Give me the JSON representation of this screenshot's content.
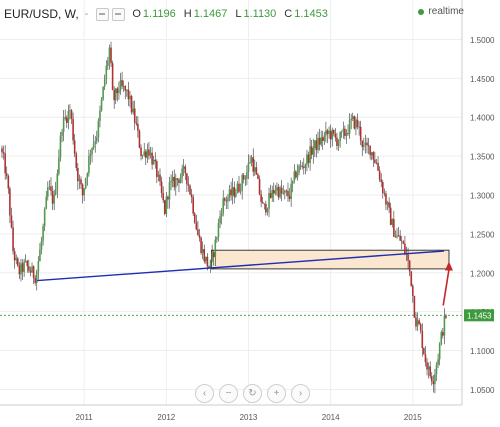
{
  "header": {
    "symbol": "EUR/USD, W,",
    "dash": "-",
    "open_label": "O",
    "open": "1.1196",
    "high_label": "H",
    "high": "1.1467",
    "low_label": "L",
    "low": "1.1130",
    "close_label": "C",
    "close": "1.1453",
    "realtime": "realtime"
  },
  "colors": {
    "up": "#4e9a4e",
    "down": "#b03030",
    "trendline": "#1f2fb5",
    "arrow": "#c0282c",
    "zone_fill": "#fbe6cf",
    "last_price": "#3d9a3d"
  },
  "nav_buttons": [
    "‹",
    "−",
    "↻",
    "+",
    "›"
  ],
  "chart_data": {
    "type": "candlestick",
    "symbol": "EUR/USD",
    "interval": "W",
    "x_ticks": [
      "2011",
      "2012",
      "2013",
      "2014",
      "2015"
    ],
    "y_ticks": [
      "1.5000",
      "1.4500",
      "1.4000",
      "1.3500",
      "1.3000",
      "1.2500",
      "1.2000",
      "1.1500",
      "1.1000",
      "1.0500"
    ],
    "ylim": [
      1.03,
      1.525
    ],
    "xlim": [
      2010.0,
      2015.55
    ],
    "last_price": "1.1453",
    "last_price_value": 1.1453,
    "key_points": [
      [
        2010.0,
        1.36
      ],
      [
        2010.05,
        1.34
      ],
      [
        2010.1,
        1.3
      ],
      [
        2010.15,
        1.23
      ],
      [
        2010.22,
        1.2
      ],
      [
        2010.3,
        1.21
      ],
      [
        2010.43,
        1.195
      ],
      [
        2010.5,
        1.24
      ],
      [
        2010.58,
        1.31
      ],
      [
        2010.65,
        1.29
      ],
      [
        2010.75,
        1.39
      ],
      [
        2010.85,
        1.41
      ],
      [
        2010.93,
        1.33
      ],
      [
        2011.0,
        1.3
      ],
      [
        2011.1,
        1.36
      ],
      [
        2011.18,
        1.38
      ],
      [
        2011.27,
        1.45
      ],
      [
        2011.33,
        1.49
      ],
      [
        2011.37,
        1.42
      ],
      [
        2011.45,
        1.44
      ],
      [
        2011.55,
        1.43
      ],
      [
        2011.65,
        1.39
      ],
      [
        2011.72,
        1.35
      ],
      [
        2011.8,
        1.36
      ],
      [
        2011.9,
        1.33
      ],
      [
        2012.0,
        1.28
      ],
      [
        2012.05,
        1.31
      ],
      [
        2012.15,
        1.32
      ],
      [
        2012.25,
        1.33
      ],
      [
        2012.32,
        1.3
      ],
      [
        2012.4,
        1.25
      ],
      [
        2012.48,
        1.22
      ],
      [
        2012.55,
        1.205
      ],
      [
        2012.62,
        1.24
      ],
      [
        2012.7,
        1.29
      ],
      [
        2012.8,
        1.3
      ],
      [
        2012.9,
        1.31
      ],
      [
        2013.0,
        1.33
      ],
      [
        2013.05,
        1.35
      ],
      [
        2013.12,
        1.32
      ],
      [
        2013.2,
        1.28
      ],
      [
        2013.25,
        1.29
      ],
      [
        2013.35,
        1.31
      ],
      [
        2013.43,
        1.3
      ],
      [
        2013.52,
        1.3
      ],
      [
        2013.6,
        1.33
      ],
      [
        2013.7,
        1.34
      ],
      [
        2013.8,
        1.36
      ],
      [
        2013.9,
        1.37
      ],
      [
        2014.0,
        1.38
      ],
      [
        2014.1,
        1.37
      ],
      [
        2014.2,
        1.38
      ],
      [
        2014.28,
        1.395
      ],
      [
        2014.35,
        1.39
      ],
      [
        2014.42,
        1.36
      ],
      [
        2014.5,
        1.36
      ],
      [
        2014.58,
        1.34
      ],
      [
        2014.65,
        1.31
      ],
      [
        2014.72,
        1.28
      ],
      [
        2014.8,
        1.25
      ],
      [
        2014.88,
        1.24
      ],
      [
        2014.95,
        1.22
      ],
      [
        2015.0,
        1.19
      ],
      [
        2015.05,
        1.14
      ],
      [
        2015.1,
        1.13
      ],
      [
        2015.17,
        1.09
      ],
      [
        2015.22,
        1.07
      ],
      [
        2015.27,
        1.065
      ],
      [
        2015.32,
        1.09
      ],
      [
        2015.37,
        1.12
      ],
      [
        2015.42,
        1.1453
      ]
    ],
    "annotations": {
      "trendline": {
        "from": [
          2010.43,
          1.19
        ],
        "to": [
          2015.38,
          1.228
        ]
      },
      "zone": {
        "x0": 2012.55,
        "x1": 2015.44,
        "y0": 1.205,
        "y1": 1.229
      },
      "arrow": {
        "from": [
          2015.37,
          1.158
        ],
        "to": [
          2015.44,
          1.212
        ]
      }
    }
  }
}
